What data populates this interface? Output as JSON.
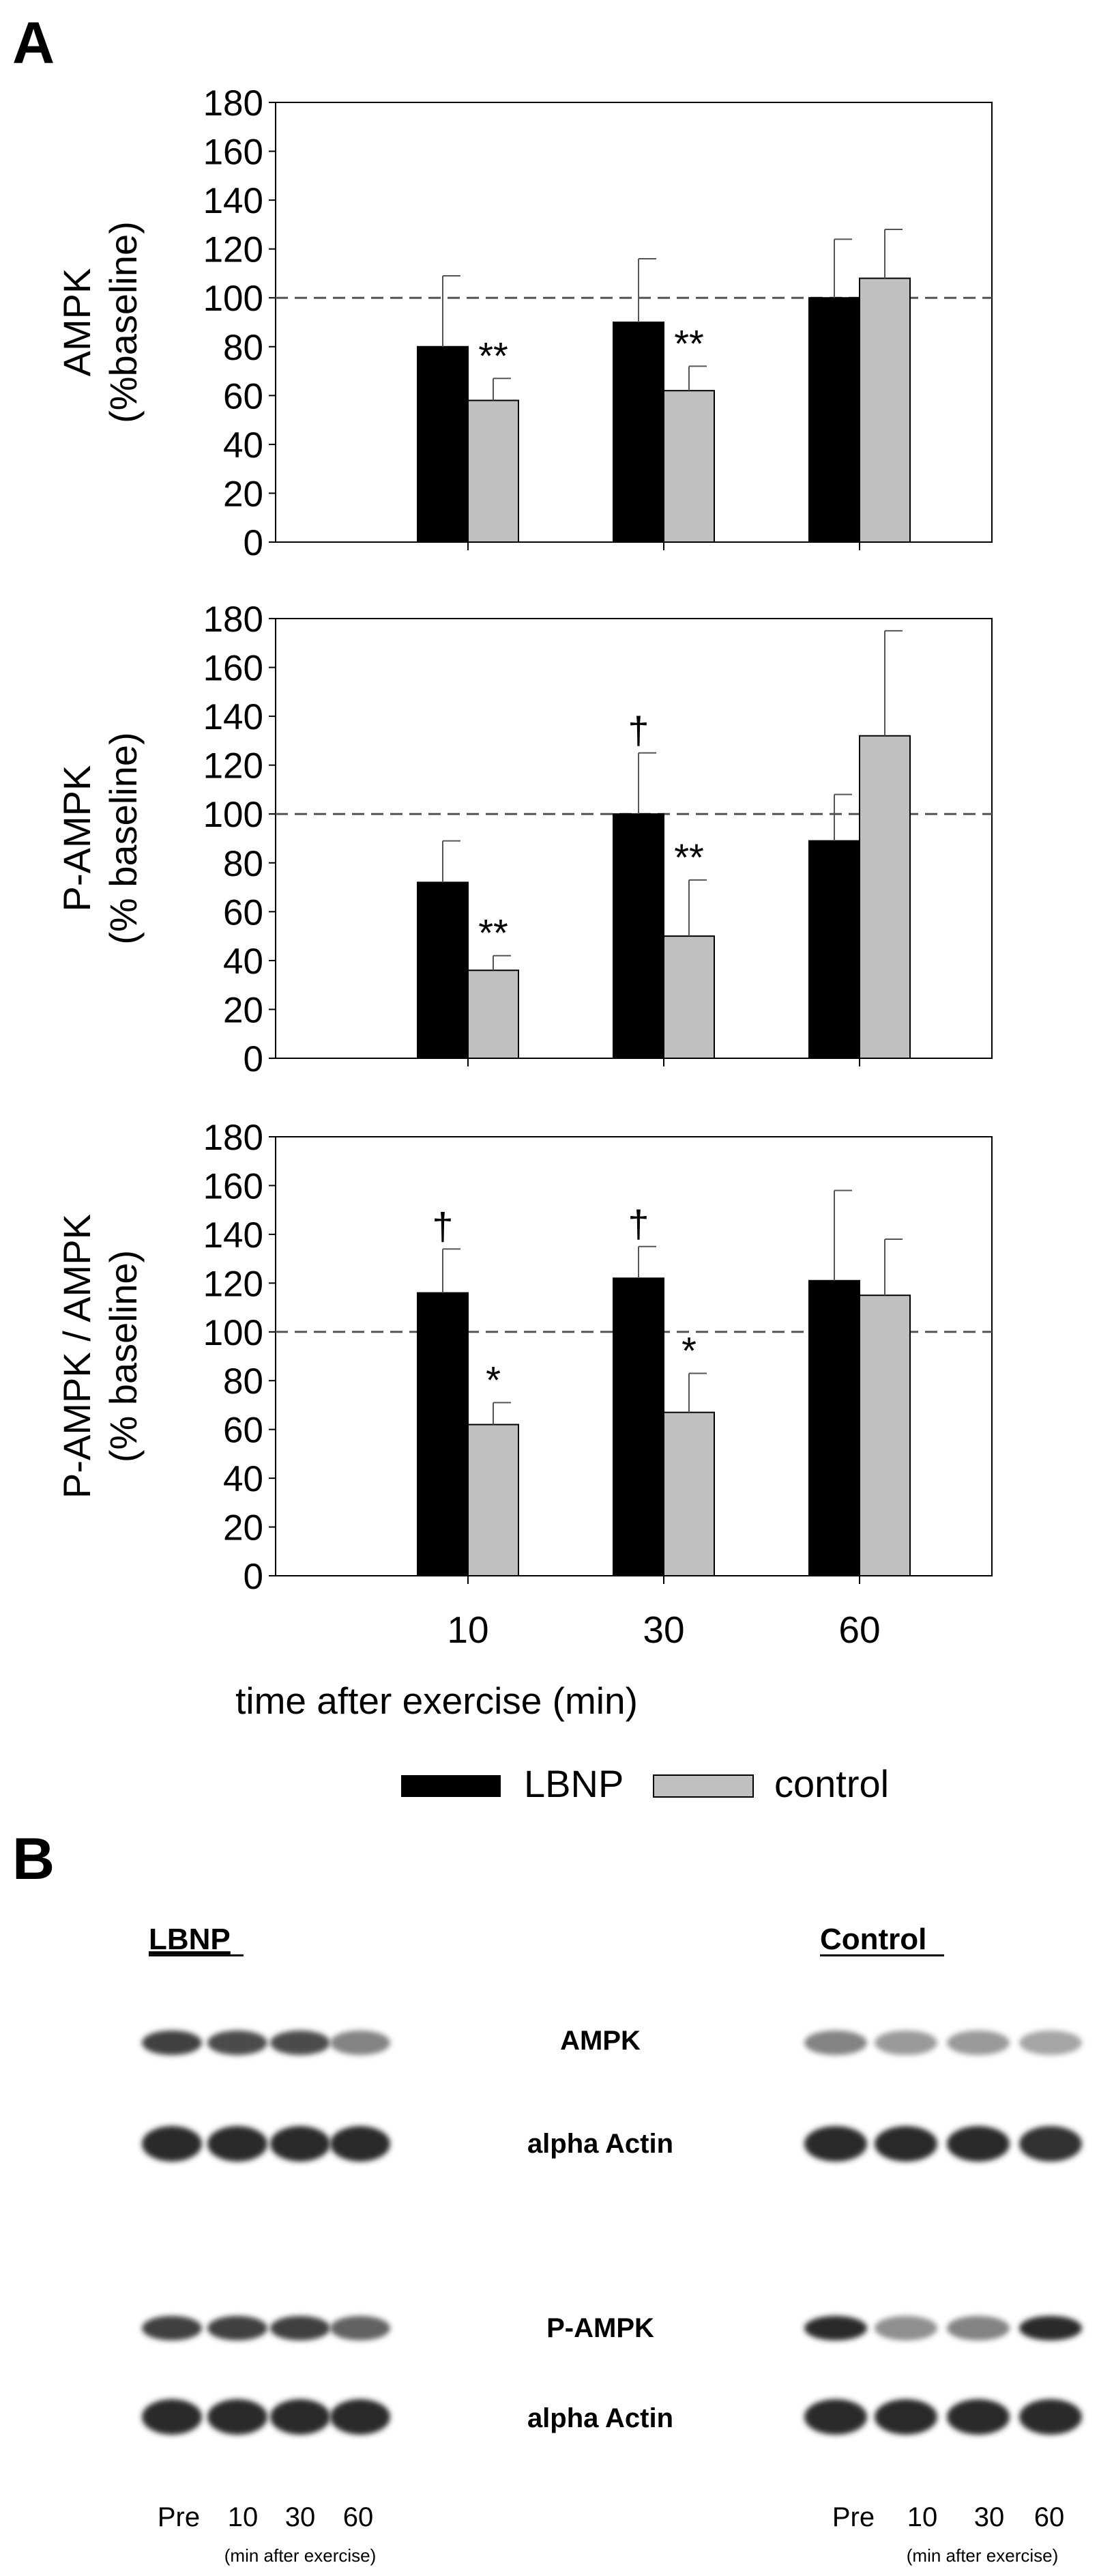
{
  "panel_a_label": "A",
  "panel_b_label": "B",
  "chart_data": [
    {
      "type": "bar",
      "ylabel_line1": "AMPK",
      "ylabel_line2": "(%baseline)",
      "categories": [
        "10",
        "30",
        "60"
      ],
      "ylim": [
        0,
        180
      ],
      "yticks": [
        0,
        20,
        40,
        60,
        80,
        100,
        120,
        140,
        160,
        180
      ],
      "reference_line": 100,
      "series": [
        {
          "name": "LBNP",
          "color": "#000000",
          "values": [
            80,
            90,
            100
          ],
          "errors": [
            29,
            26,
            24
          ],
          "annotations": [
            "",
            "",
            ""
          ]
        },
        {
          "name": "control",
          "color": "#c0c0c0",
          "values": [
            58,
            62,
            108
          ],
          "errors": [
            9,
            10,
            20
          ],
          "annotations": [
            "**",
            "**",
            ""
          ]
        }
      ]
    },
    {
      "type": "bar",
      "ylabel_line1": "P-AMPK",
      "ylabel_line2": "(% baseline)",
      "categories": [
        "10",
        "30",
        "60"
      ],
      "ylim": [
        0,
        180
      ],
      "yticks": [
        0,
        20,
        40,
        60,
        80,
        100,
        120,
        140,
        160,
        180
      ],
      "reference_line": 100,
      "series": [
        {
          "name": "LBNP",
          "color": "#000000",
          "values": [
            72,
            100,
            89
          ],
          "errors": [
            17,
            25,
            19
          ],
          "annotations": [
            "",
            "†",
            ""
          ]
        },
        {
          "name": "control",
          "color": "#c0c0c0",
          "values": [
            36,
            50,
            132
          ],
          "errors": [
            6,
            23,
            43
          ],
          "annotations": [
            "**",
            "**",
            ""
          ]
        }
      ]
    },
    {
      "type": "bar",
      "ylabel_line1": "P-AMPK / AMPK",
      "ylabel_line2": "(% baseline)",
      "categories": [
        "10",
        "30",
        "60"
      ],
      "ylim": [
        0,
        180
      ],
      "yticks": [
        0,
        20,
        40,
        60,
        80,
        100,
        120,
        140,
        160,
        180
      ],
      "reference_line": 100,
      "xlabel": "time after exercise (min)",
      "series": [
        {
          "name": "LBNP",
          "color": "#000000",
          "values": [
            116,
            122,
            121
          ],
          "errors": [
            18,
            13,
            37
          ],
          "annotations": [
            "†",
            "†",
            ""
          ]
        },
        {
          "name": "control",
          "color": "#c0c0c0",
          "values": [
            62,
            67,
            115
          ],
          "errors": [
            9,
            16,
            23
          ],
          "annotations": [
            "*",
            "*",
            ""
          ]
        }
      ]
    }
  ],
  "legend": [
    {
      "label": "LBNP",
      "color": "#000000"
    },
    {
      "label": "control",
      "color": "#c0c0c0"
    }
  ],
  "blots": {
    "left_group_label": "LBNP",
    "right_group_label": "Control",
    "row_labels": [
      "AMPK",
      "alpha Actin",
      "P-AMPK",
      "alpha Actin"
    ],
    "lanes": [
      "Pre",
      "10",
      "30",
      "60"
    ],
    "lane_caption": "(min after exercise)",
    "band_intensity_left": [
      [
        0.85,
        0.8,
        0.8,
        0.55
      ],
      [
        0.95,
        0.95,
        0.95,
        0.95
      ],
      [
        0.85,
        0.85,
        0.85,
        0.7
      ],
      [
        0.95,
        0.95,
        0.95,
        0.95
      ]
    ],
    "band_intensity_right": [
      [
        0.55,
        0.45,
        0.45,
        0.4
      ],
      [
        0.95,
        0.95,
        0.95,
        0.92
      ],
      [
        0.95,
        0.5,
        0.55,
        0.95
      ],
      [
        0.95,
        0.95,
        0.95,
        0.95
      ]
    ]
  }
}
